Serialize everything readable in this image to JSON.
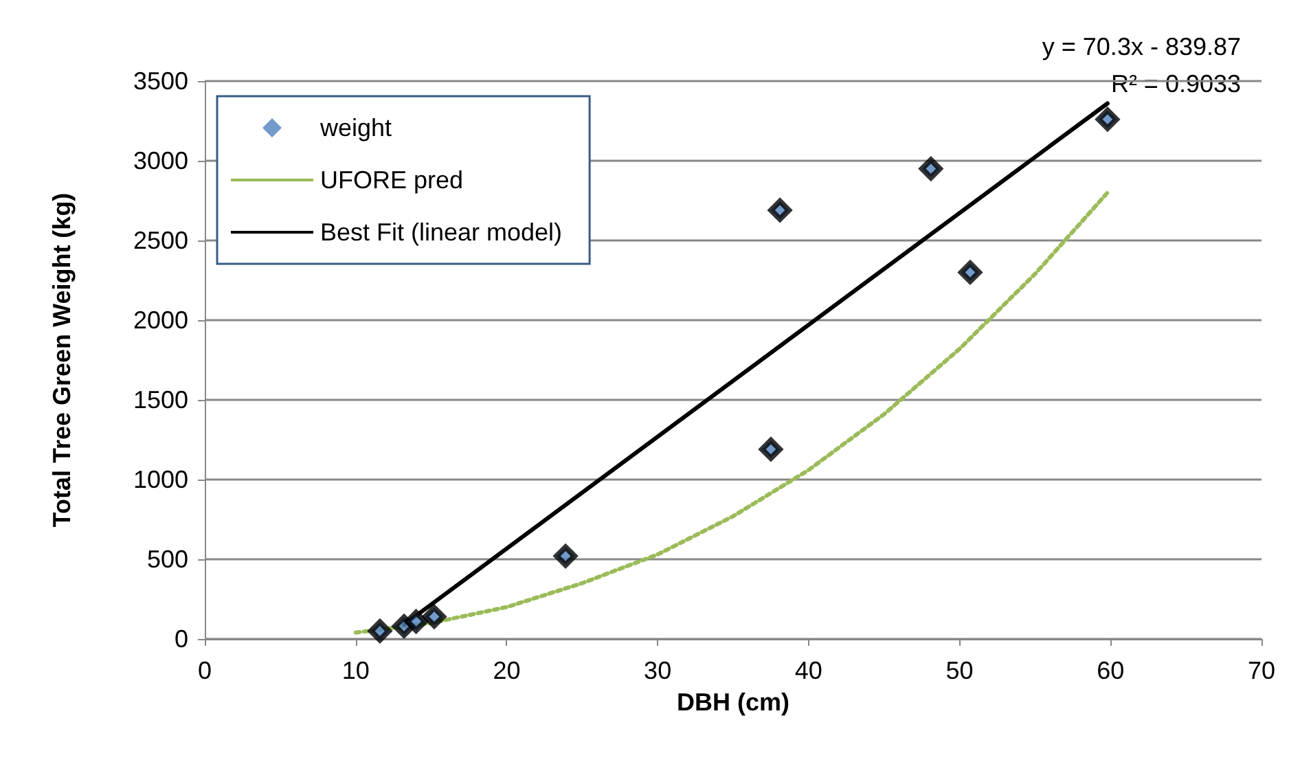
{
  "chart_data": {
    "type": "scatter",
    "xlabel": "DBH (cm)",
    "ylabel": "Total Tree Green Weight (kg)",
    "xlim": [
      0,
      70
    ],
    "xticks": [
      0,
      10,
      20,
      30,
      40,
      50,
      60,
      70
    ],
    "ylim": [
      0,
      3500
    ],
    "yticks": [
      0,
      500,
      1000,
      1500,
      2000,
      2500,
      3000,
      3500
    ],
    "grid": "y",
    "legend": "top left",
    "annotations": [
      "y = 70.3x - 839.87",
      "R² = 0.9033"
    ],
    "series": [
      {
        "name": "weight",
        "marker": "diamond",
        "color": "#4f81bd",
        "x": [
          11.6,
          13.2,
          14.0,
          15.2,
          23.9,
          37.5,
          38.1,
          48.1,
          50.7,
          59.8
        ],
        "values": [
          50,
          80,
          110,
          140,
          520,
          1190,
          2690,
          2950,
          2300,
          3260
        ]
      },
      {
        "name": "UFORE pred",
        "type": "line",
        "marker": "none",
        "line_style": "dotted",
        "color": "#9bbb59",
        "x": [
          10,
          15,
          20,
          25,
          30,
          35,
          40,
          45,
          50,
          55,
          59.8
        ],
        "values": [
          40,
          100,
          200,
          350,
          530,
          770,
          1060,
          1410,
          1820,
          2290,
          2800
        ]
      },
      {
        "name": "Best Fit (linear model)",
        "type": "line",
        "marker": "none",
        "line_style": "solid",
        "color": "#000000",
        "x": [
          13.2,
          59.8
        ],
        "values": [
          90,
          3360
        ]
      }
    ]
  }
}
